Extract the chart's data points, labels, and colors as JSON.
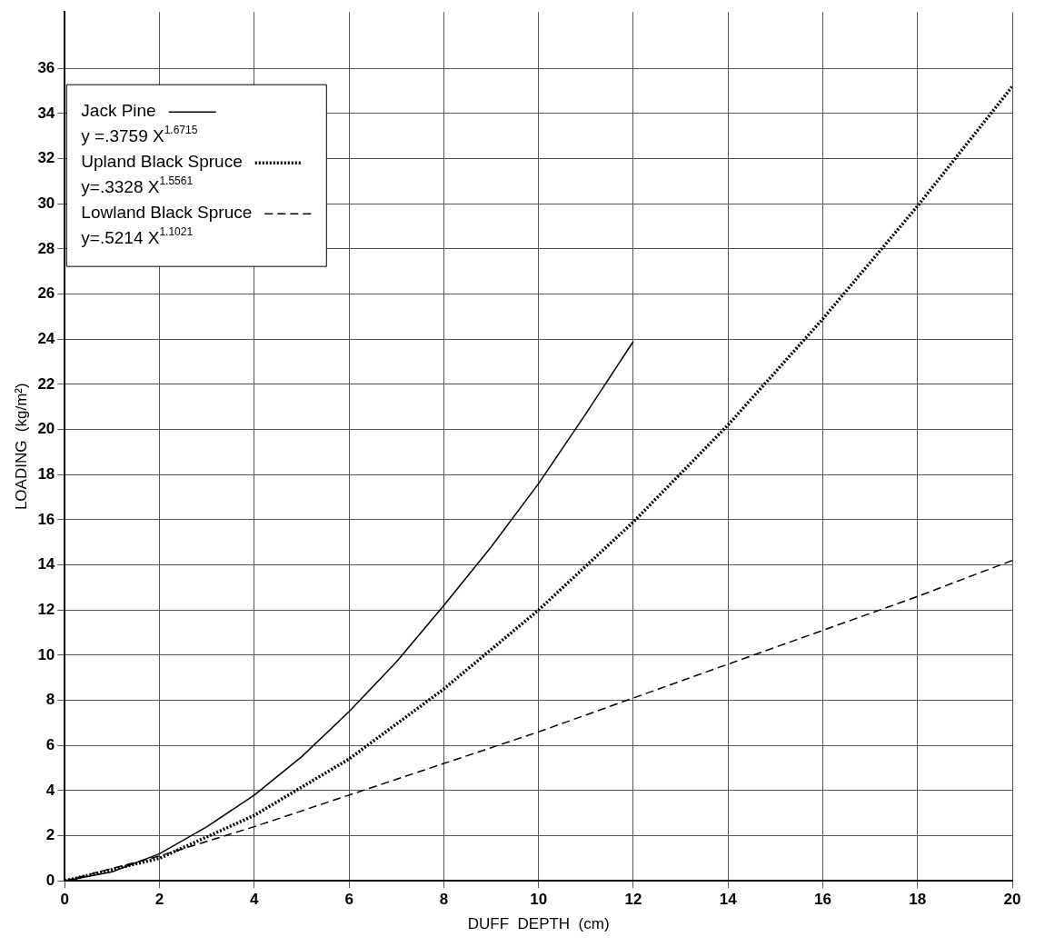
{
  "chart_data": {
    "type": "line",
    "xlabel": "DUFF  DEPTH  (cm)",
    "ylabel": "LOADING  (kg/m²)",
    "xlim": [
      0,
      20
    ],
    "xticks": [
      0,
      2,
      4,
      6,
      8,
      10,
      12,
      14,
      16,
      18,
      20
    ],
    "ylim": [
      0,
      38.5
    ],
    "yticks": [
      0,
      2,
      4,
      6,
      8,
      10,
      12,
      14,
      16,
      18,
      20,
      22,
      24,
      26,
      28,
      30,
      32,
      34,
      36
    ],
    "grid": true,
    "legend": "top left",
    "marker": "none",
    "annotations": [
      "y =.3759 X$^{1.6715}$",
      "y=.3328 X$^{1.5561}$",
      "y=.5214 X$^{1.1021}$"
    ],
    "series": [
      {
        "name": "Jack Pine",
        "color": "#000000",
        "line_style": "solid",
        "x": [
          0,
          1,
          2,
          3,
          4,
          5,
          6,
          7,
          8,
          9,
          10,
          11,
          12
        ],
        "values": [
          0,
          0.4,
          1.2,
          2.4,
          3.8,
          5.5,
          7.5,
          9.7,
          12.2,
          14.8,
          17.6,
          20.7,
          23.9
        ]
      },
      {
        "name": "Upland Black Spruce",
        "color": "#000000",
        "line_style": "dotted",
        "x": [
          0,
          2,
          4,
          6,
          8,
          10,
          12,
          14,
          16,
          18,
          20
        ],
        "values": [
          0,
          1.0,
          2.9,
          5.4,
          8.5,
          12.0,
          15.9,
          20.2,
          24.9,
          29.9,
          35.2
        ]
      },
      {
        "name": "Lowland Black Spruce",
        "color": "#000000",
        "line_style": "dashed",
        "x": [
          0,
          2,
          4,
          6,
          8,
          10,
          12,
          14,
          16,
          18,
          20
        ],
        "values": [
          0,
          1.1,
          2.4,
          3.8,
          5.2,
          6.6,
          8.1,
          9.6,
          11.1,
          12.6,
          14.2
        ]
      }
    ]
  }
}
